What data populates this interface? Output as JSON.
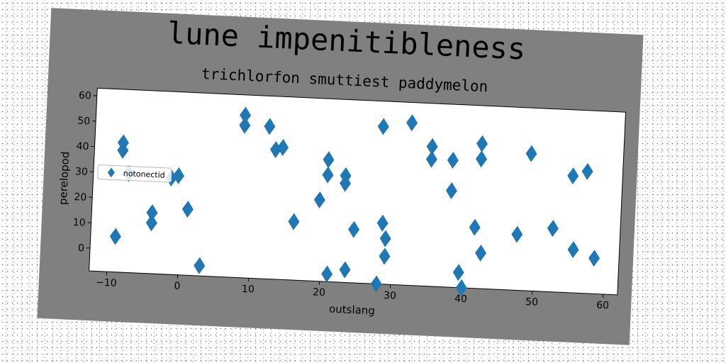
{
  "chart_data": {
    "type": "scatter",
    "title": "lune impenitibleness",
    "subtitle": "trichlorfon smuttiest paddymelon",
    "xlabel": "outslang",
    "ylabel": "perelopod",
    "xlim": [
      -12.5,
      62
    ],
    "ylim": [
      -9,
      63
    ],
    "xticks": [
      -10,
      0,
      10,
      20,
      30,
      40,
      50,
      60
    ],
    "yticks": [
      0,
      10,
      20,
      30,
      40,
      50,
      60
    ],
    "xtick_labels": [
      "−10",
      "0",
      "10",
      "20",
      "30",
      "40",
      "50",
      "60"
    ],
    "ytick_labels": [
      "0",
      "10",
      "20",
      "30",
      "40",
      "50",
      "60"
    ],
    "legend_position": "center-left",
    "grid": false,
    "series": [
      {
        "name": "notonectid",
        "marker": "diamond",
        "color": "#1f77b4",
        "points": [
          [
            -9,
            5
          ],
          [
            -8.5,
            42
          ],
          [
            -8.5,
            39
          ],
          [
            -7.5,
            30
          ],
          [
            -4,
            15
          ],
          [
            -4,
            11
          ],
          [
            -1.5,
            29
          ],
          [
            -0.5,
            30
          ],
          [
            1,
            17
          ],
          [
            3,
            -5
          ],
          [
            8.5,
            55
          ],
          [
            8.5,
            51
          ],
          [
            12,
            51
          ],
          [
            13,
            42
          ],
          [
            14,
            43
          ],
          [
            16,
            14
          ],
          [
            19.5,
            23
          ],
          [
            20.5,
            39
          ],
          [
            20.5,
            33
          ],
          [
            21,
            -6
          ],
          [
            23,
            33
          ],
          [
            23,
            30
          ],
          [
            23.5,
            -4
          ],
          [
            24.5,
            12
          ],
          [
            28,
            -9
          ],
          [
            28,
            53
          ],
          [
            28.5,
            15
          ],
          [
            29,
            9
          ],
          [
            29,
            2
          ],
          [
            32,
            55
          ],
          [
            35,
            46
          ],
          [
            35,
            41
          ],
          [
            38,
            41
          ],
          [
            38,
            29
          ],
          [
            39.5,
            -3
          ],
          [
            40,
            -9
          ],
          [
            41.5,
            15
          ],
          [
            42,
            48
          ],
          [
            42,
            42
          ],
          [
            42.5,
            5
          ],
          [
            47.5,
            13
          ],
          [
            49,
            45
          ],
          [
            52.5,
            16
          ],
          [
            55,
            37
          ],
          [
            55.5,
            8
          ],
          [
            57,
            39
          ],
          [
            58.5,
            5
          ]
        ]
      }
    ]
  }
}
